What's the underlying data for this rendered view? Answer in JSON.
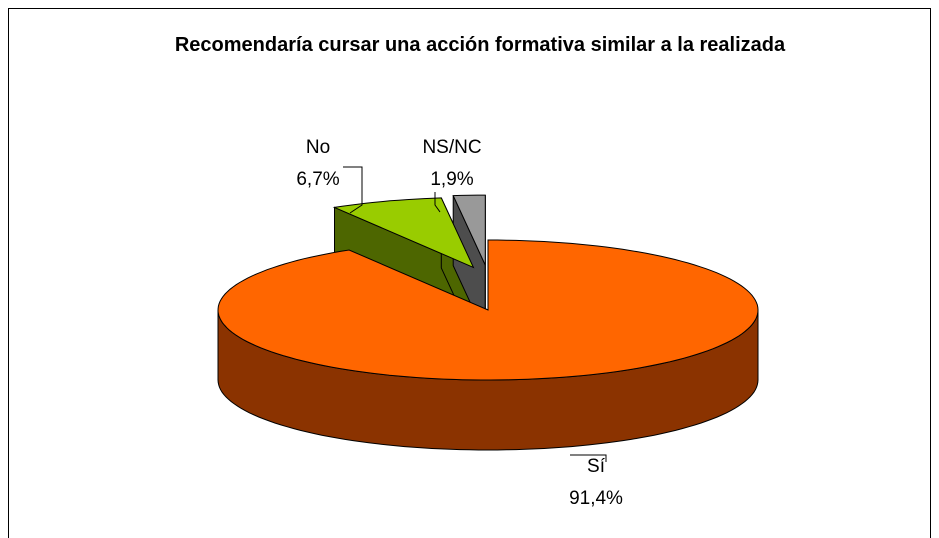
{
  "chart_data": {
    "type": "pie",
    "title": "Recomendaría cursar una acción formativa similar a la realizada",
    "categories": [
      "Sí",
      "No",
      "NS/NC"
    ],
    "values": [
      91.4,
      6.7,
      1.9
    ],
    "value_labels": [
      "91,4%",
      "6,7%",
      "1,9%"
    ],
    "colors": [
      "#ff6600",
      "#99cc00",
      "#999999"
    ],
    "side_colors": [
      "#8b3300",
      "#4d6600",
      "#4d4d4d"
    ],
    "exploded": [
      false,
      true,
      true
    ]
  }
}
